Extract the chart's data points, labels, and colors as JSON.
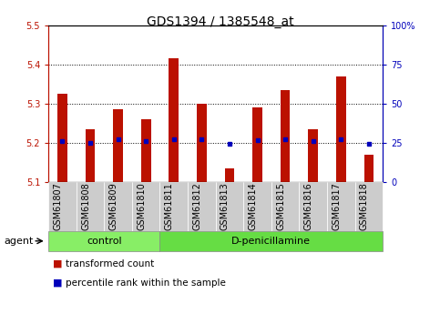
{
  "title": "GDS1394 / 1385548_at",
  "categories": [
    "GSM61807",
    "GSM61808",
    "GSM61809",
    "GSM61810",
    "GSM61811",
    "GSM61812",
    "GSM61813",
    "GSM61814",
    "GSM61815",
    "GSM61816",
    "GSM61817",
    "GSM61818"
  ],
  "red_values": [
    5.325,
    5.235,
    5.285,
    5.26,
    5.415,
    5.3,
    5.135,
    5.29,
    5.335,
    5.235,
    5.37,
    5.17
  ],
  "blue_values": [
    5.205,
    5.2,
    5.21,
    5.205,
    5.21,
    5.21,
    5.197,
    5.207,
    5.21,
    5.205,
    5.21,
    5.198
  ],
  "ylim_left": [
    5.1,
    5.5
  ],
  "ylim_right": [
    0,
    100
  ],
  "yticks_left": [
    5.1,
    5.2,
    5.3,
    5.4,
    5.5
  ],
  "yticks_right": [
    0,
    25,
    50,
    75,
    100
  ],
  "yticks_right_labels": [
    "0",
    "25",
    "50",
    "75",
    "100%"
  ],
  "grid_lines": [
    5.2,
    5.3,
    5.4
  ],
  "bar_bottom": 5.1,
  "n_control": 4,
  "n_total": 12,
  "group_labels": [
    "control",
    "D-penicillamine"
  ],
  "agent_label": "agent",
  "legend_red": "transformed count",
  "legend_blue": "percentile rank within the sample",
  "red_color": "#bb1100",
  "blue_color": "#0000bb",
  "tick_cell_color": "#cccccc",
  "control_bg": "#88ee66",
  "dpen_bg": "#66dd44",
  "title_fontsize": 10,
  "tick_fontsize": 7,
  "label_fontsize": 8,
  "legend_fontsize": 7.5
}
